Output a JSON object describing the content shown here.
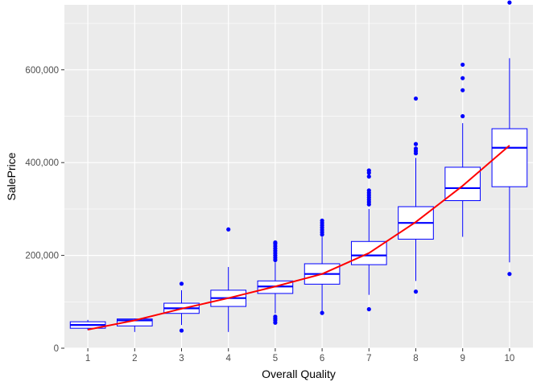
{
  "chart_data": {
    "type": "box",
    "title": "",
    "xlabel": "Overall Quality",
    "ylabel": "SalePrice",
    "ylim": [
      0,
      740000
    ],
    "y_ticks": [
      0,
      200000,
      400000,
      600000
    ],
    "y_tick_labels": [
      "0",
      "200,000",
      "400,000",
      "600,000"
    ],
    "categories": [
      "1",
      "2",
      "3",
      "4",
      "5",
      "6",
      "7",
      "8",
      "9",
      "10"
    ],
    "boxes": [
      {
        "x": "1",
        "q1": 43000,
        "median": 50000,
        "q3": 57000,
        "whisker_low": 39000,
        "whisker_high": 61000,
        "outliers": []
      },
      {
        "x": "2",
        "q1": 48000,
        "median": 60000,
        "q3": 63000,
        "whisker_low": 35000,
        "whisker_high": 64000,
        "outliers": []
      },
      {
        "x": "3",
        "q1": 75000,
        "median": 86000,
        "q3": 97000,
        "whisker_low": 50000,
        "whisker_high": 125000,
        "outliers": [
          38000,
          139000
        ]
      },
      {
        "x": "4",
        "q1": 90000,
        "median": 108000,
        "q3": 125000,
        "whisker_low": 35000,
        "whisker_high": 175000,
        "outliers": [
          256000
        ]
      },
      {
        "x": "5",
        "q1": 118000,
        "median": 133000,
        "q3": 145000,
        "whisker_low": 75000,
        "whisker_high": 185000,
        "outliers": [
          55000,
          60000,
          64000,
          68000,
          190000,
          195000,
          200000,
          205000,
          210000,
          215000,
          220000,
          225000,
          228000
        ]
      },
      {
        "x": "6",
        "q1": 138000,
        "median": 160000,
        "q3": 182000,
        "whisker_low": 76000,
        "whisker_high": 240000,
        "outliers": [
          76000,
          245000,
          250000,
          255000,
          260000,
          265000,
          270000,
          275000
        ]
      },
      {
        "x": "7",
        "q1": 180000,
        "median": 200000,
        "q3": 230000,
        "whisker_low": 115000,
        "whisker_high": 300000,
        "outliers": [
          84000,
          310000,
          315000,
          320000,
          325000,
          330000,
          335000,
          340000,
          370000,
          378000,
          383000
        ]
      },
      {
        "x": "8",
        "q1": 235000,
        "median": 270000,
        "q3": 305000,
        "whisker_low": 145000,
        "whisker_high": 410000,
        "outliers": [
          122000,
          420000,
          425000,
          430000,
          440000,
          538000
        ]
      },
      {
        "x": "9",
        "q1": 318000,
        "median": 345000,
        "q3": 390000,
        "whisker_low": 240000,
        "whisker_high": 485000,
        "outliers": [
          500000,
          556000,
          582000,
          611000
        ]
      },
      {
        "x": "10",
        "q1": 348000,
        "median": 432000,
        "q3": 473000,
        "whisker_low": 185000,
        "whisker_high": 625000,
        "outliers": [
          160000,
          745000,
          755000
        ]
      }
    ],
    "trend_line": {
      "x": [
        "1",
        "2",
        "3",
        "4",
        "5",
        "6",
        "7",
        "8",
        "9",
        "10"
      ],
      "y": [
        40000,
        60000,
        85000,
        108000,
        133000,
        160000,
        205000,
        272000,
        350000,
        437000
      ]
    },
    "grid": true,
    "colors": {
      "panel_background": "#ebebeb",
      "grid": "#ffffff",
      "box_outline": "#0000ff",
      "box_fill": "#ffffff",
      "outlier_points": "#0000ff",
      "trend_line": "#ff0000"
    }
  }
}
